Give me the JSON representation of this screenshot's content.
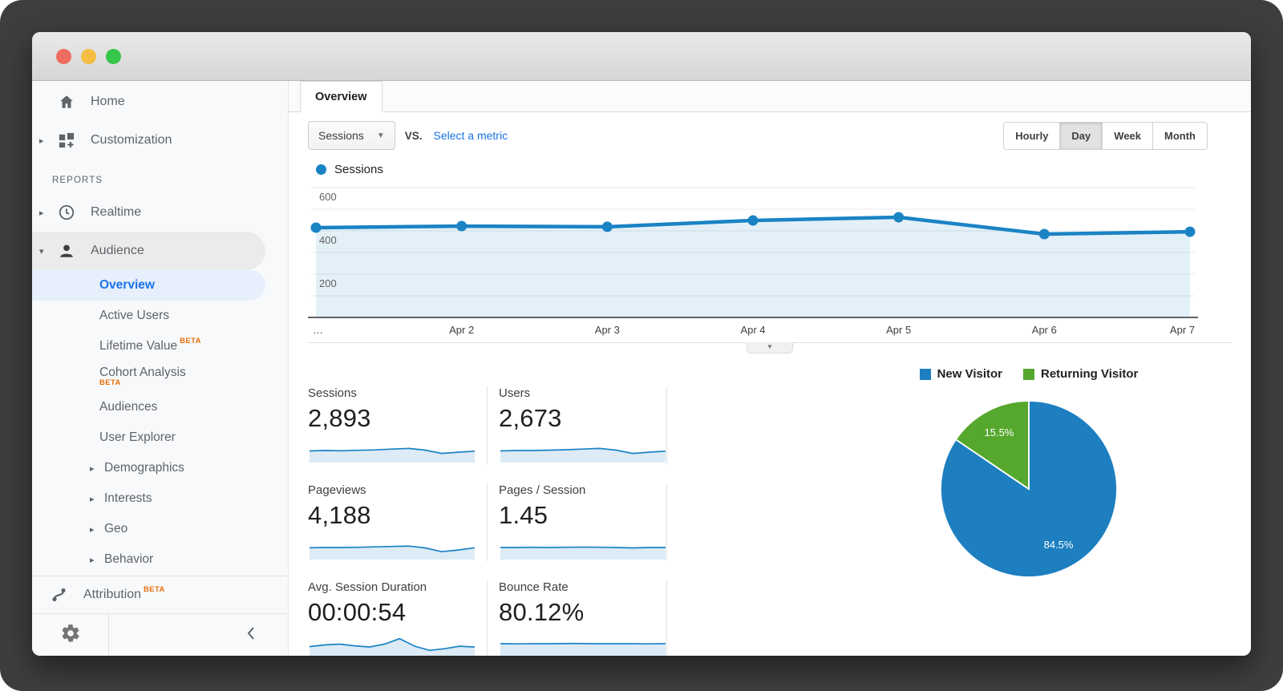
{
  "colors": {
    "accent_blue": "#1a73e8",
    "chart_line": "#1a83c4",
    "chart_fill": "#dcebf5",
    "pie_blue": "#1d7fc0",
    "pie_green": "#55a82d",
    "beta_orange": "#e8710a"
  },
  "window": {
    "controls": [
      "close",
      "minimize",
      "zoom"
    ]
  },
  "sidebar": {
    "items": [
      {
        "label": "Home",
        "icon": "home-icon"
      },
      {
        "label": "Customization",
        "icon": "customization-icon",
        "arrow": "right"
      },
      {
        "type": "section",
        "label": "REPORTS"
      },
      {
        "label": "Realtime",
        "icon": "clock-icon",
        "arrow": "right"
      },
      {
        "label": "Audience",
        "icon": "person-icon",
        "arrow": "down",
        "highlight": "gray"
      },
      {
        "label": "Overview",
        "indent": 1,
        "selected": true
      },
      {
        "label": "Active Users",
        "indent": 1
      },
      {
        "label": "Lifetime Value",
        "indent": 1,
        "beta": "sup"
      },
      {
        "label": "Cohort Analysis",
        "indent": 1,
        "beta": "below"
      },
      {
        "label": "Audiences",
        "indent": 1
      },
      {
        "label": "User Explorer",
        "indent": 1
      },
      {
        "label": "Demographics",
        "indent": 1,
        "arrow": "right"
      },
      {
        "label": "Interests",
        "indent": 1,
        "arrow": "right"
      },
      {
        "label": "Geo",
        "indent": 1,
        "arrow": "right"
      },
      {
        "label": "Behavior",
        "indent": 1,
        "arrow": "right"
      }
    ],
    "beta_label": "BETA",
    "attribution": {
      "label": "Attribution",
      "beta": "BETA",
      "icon": "attribution-icon"
    }
  },
  "tabs": {
    "overview": "Overview"
  },
  "toolbar": {
    "metric_dropdown_value": "Sessions",
    "vs_label": "VS.",
    "compare_link": "Select a metric",
    "granularity": {
      "options": [
        "Hourly",
        "Day",
        "Week",
        "Month"
      ],
      "active": "Day"
    }
  },
  "chart_legend": {
    "label": "Sessions",
    "color": "#1a83c4"
  },
  "chart_data": [
    {
      "type": "line",
      "title": "Sessions",
      "x": [
        "…",
        "Apr 2",
        "Apr 3",
        "Apr 4",
        "Apr 5",
        "Apr 6",
        "Apr 7"
      ],
      "series": [
        {
          "name": "Sessions",
          "values": [
            415,
            422,
            419,
            448,
            463,
            385,
            396
          ]
        }
      ],
      "ylim": [
        0,
        600
      ],
      "yticks": [
        200,
        400,
        600
      ],
      "grid": true,
      "legend_position": "top-left",
      "line_color": "#1a83c4",
      "fill_color": "rgba(26,131,196,0.12)"
    },
    {
      "type": "pie",
      "slices": [
        {
          "label": "New Visitor",
          "value": 84.5,
          "display": "84.5%",
          "color": "#1d7fc0"
        },
        {
          "label": "Returning Visitor",
          "value": 15.5,
          "display": "15.5%",
          "color": "#55a82d"
        }
      ],
      "legend_position": "top"
    }
  ],
  "metrics": [
    {
      "label": "Sessions",
      "value": "2,893",
      "spark": [
        48,
        50,
        49,
        51,
        53,
        57,
        60,
        52,
        36,
        42,
        47
      ]
    },
    {
      "label": "Users",
      "value": "2,673",
      "spark": [
        48,
        50,
        50,
        52,
        54,
        57,
        60,
        52,
        36,
        42,
        47
      ]
    },
    {
      "label": "Pageviews",
      "value": "4,188",
      "spark": [
        49,
        50,
        50,
        51,
        53,
        55,
        57,
        48,
        30,
        38,
        49
      ]
    },
    {
      "label": "Pages / Session",
      "value": "1.45",
      "spark": [
        50,
        50,
        51,
        50,
        51,
        52,
        51,
        50,
        48,
        50,
        50
      ]
    },
    {
      "label": "Avg. Session Duration",
      "value": "00:00:54",
      "spark": [
        40,
        48,
        52,
        44,
        38,
        52,
        78,
        42,
        22,
        30,
        42,
        38
      ]
    },
    {
      "label": "Bounce Rate",
      "value": "80.12%",
      "spark": [
        54,
        53,
        54,
        54,
        55,
        54,
        54,
        54,
        53,
        54
      ]
    }
  ]
}
